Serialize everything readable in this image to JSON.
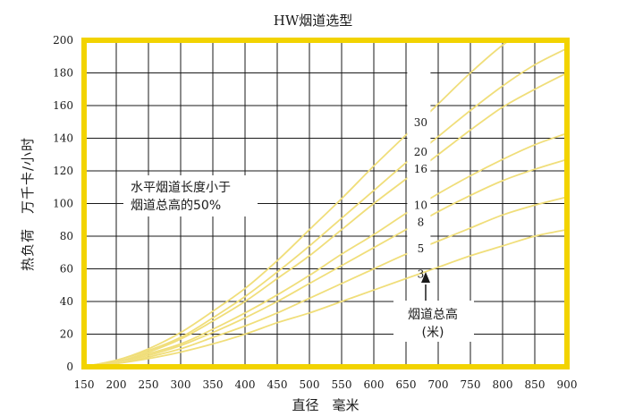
{
  "chart_data": {
    "type": "line",
    "title": "HW烟道选型",
    "xlabel": "直径　毫米",
    "ylabel": "热负荷　万千卡/小时",
    "xlim": [
      150,
      900
    ],
    "ylim": [
      0,
      200
    ],
    "x_ticks": [
      150,
      200,
      250,
      300,
      350,
      400,
      450,
      500,
      550,
      600,
      650,
      700,
      750,
      800,
      850,
      900
    ],
    "y_ticks": [
      0,
      20,
      40,
      60,
      80,
      100,
      120,
      140,
      160,
      180,
      200
    ],
    "grid": true,
    "annotation": [
      "水平烟道长度小于",
      "烟道总高的50%"
    ],
    "height_label": [
      "烟道总高",
      "(米)"
    ],
    "colors": {
      "frame": "#f2d300",
      "curve": "#f0de7a",
      "grid": "#1a1a1a"
    },
    "series": [
      {
        "name": "3",
        "x": [
          150,
          200,
          250,
          300,
          350,
          400,
          450,
          500,
          550,
          600,
          650,
          700,
          750,
          800,
          850,
          900
        ],
        "y": [
          0,
          2,
          5,
          9,
          14,
          20,
          27,
          33,
          40,
          47,
          54,
          61,
          68,
          74,
          80,
          84
        ]
      },
      {
        "name": "5",
        "x": [
          150,
          200,
          250,
          300,
          350,
          400,
          450,
          500,
          550,
          600,
          650,
          700,
          750,
          800,
          850,
          900
        ],
        "y": [
          0,
          2,
          6,
          11,
          18,
          25,
          33,
          42,
          51,
          60,
          69,
          77,
          85,
          93,
          99,
          104
        ]
      },
      {
        "name": "8",
        "x": [
          150,
          200,
          250,
          300,
          350,
          400,
          450,
          500,
          550,
          600,
          650,
          700,
          750,
          800,
          850,
          900
        ],
        "y": [
          0,
          3,
          7,
          13,
          21,
          30,
          40,
          51,
          62,
          73,
          84,
          95,
          105,
          114,
          121,
          127
        ]
      },
      {
        "name": "10",
        "x": [
          150,
          200,
          250,
          300,
          350,
          400,
          450,
          500,
          550,
          600,
          650,
          700,
          750,
          800,
          850,
          900
        ],
        "y": [
          0,
          3,
          8,
          14,
          23,
          33,
          44,
          56,
          69,
          81,
          94,
          106,
          117,
          127,
          136,
          143
        ]
      },
      {
        "name": "16",
        "x": [
          150,
          200,
          250,
          300,
          350,
          400,
          450,
          500,
          550,
          600,
          650,
          700,
          750,
          800,
          850,
          900
        ],
        "y": [
          0,
          3,
          9,
          17,
          28,
          40,
          54,
          68,
          84,
          100,
          115,
          130,
          145,
          159,
          170,
          180
        ]
      },
      {
        "name": "20",
        "x": [
          150,
          200,
          250,
          300,
          350,
          400,
          450,
          500,
          550,
          600,
          650,
          700,
          750,
          800,
          850,
          900
        ],
        "y": [
          0,
          4,
          10,
          18,
          30,
          43,
          58,
          74,
          91,
          108,
          125,
          141,
          157,
          172,
          185,
          195
        ]
      },
      {
        "name": "30",
        "x": [
          150,
          200,
          250,
          300,
          350,
          400,
          450,
          500,
          550,
          600,
          650,
          700,
          750,
          800,
          850,
          900
        ],
        "y": [
          0,
          4,
          11,
          21,
          34,
          48,
          65,
          84,
          103,
          123,
          142,
          161,
          180,
          197,
          210,
          220
        ]
      }
    ]
  }
}
